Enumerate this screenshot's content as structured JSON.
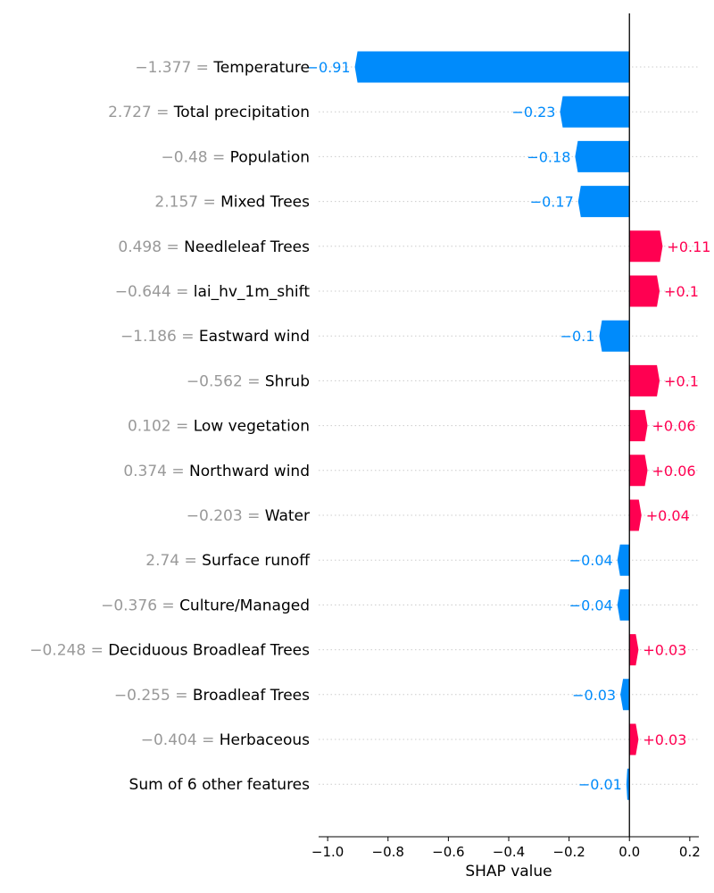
{
  "chart_data": {
    "type": "bar",
    "orientation": "horizontal",
    "xlabel": "SHAP value",
    "xlim": [
      -1.03,
      0.23
    ],
    "xticks": [
      -1.0,
      -0.8,
      -0.6,
      -0.4,
      -0.2,
      0.0,
      0.2
    ],
    "xtick_labels": [
      "−1.0",
      "−0.8",
      "−0.6",
      "−0.4",
      "−0.2",
      "0.0",
      "0.2"
    ],
    "colors": {
      "positive": "#ff0051",
      "negative": "#008bfb",
      "feature_value": "#999999"
    },
    "features": [
      {
        "value": "−1.377",
        "name": "Temperature",
        "shap": -0.91,
        "label": "−0.91"
      },
      {
        "value": "2.727",
        "name": "Total precipitation",
        "shap": -0.23,
        "label": "−0.23"
      },
      {
        "value": "−0.48",
        "name": "Population",
        "shap": -0.18,
        "label": "−0.18"
      },
      {
        "value": "2.157",
        "name": "Mixed Trees",
        "shap": -0.17,
        "label": "−0.17"
      },
      {
        "value": "0.498",
        "name": "Needleleaf Trees",
        "shap": 0.11,
        "label": "+0.11"
      },
      {
        "value": "−0.644",
        "name": "lai_hv_1m_shift",
        "shap": 0.1,
        "label": "+0.1"
      },
      {
        "value": "−1.186",
        "name": "Eastward wind",
        "shap": -0.1,
        "label": "−0.1"
      },
      {
        "value": "−0.562",
        "name": "Shrub",
        "shap": 0.1,
        "label": "+0.1"
      },
      {
        "value": "0.102",
        "name": "Low vegetation",
        "shap": 0.06,
        "label": "+0.06"
      },
      {
        "value": "0.374",
        "name": "Northward wind",
        "shap": 0.06,
        "label": "+0.06"
      },
      {
        "value": "−0.203",
        "name": "Water",
        "shap": 0.04,
        "label": "+0.04"
      },
      {
        "value": "2.74",
        "name": "Surface runoff",
        "shap": -0.04,
        "label": "−0.04"
      },
      {
        "value": "−0.376",
        "name": "Culture/Managed",
        "shap": -0.04,
        "label": "−0.04"
      },
      {
        "value": "−0.248",
        "name": "Deciduous Broadleaf Trees",
        "shap": 0.03,
        "label": "+0.03"
      },
      {
        "value": "−0.255",
        "name": "Broadleaf Trees",
        "shap": -0.03,
        "label": "−0.03"
      },
      {
        "value": "−0.404",
        "name": "Herbaceous",
        "shap": 0.03,
        "label": "+0.03"
      },
      {
        "value": "",
        "name": "Sum of 6 other features",
        "shap": -0.01,
        "label": "−0.01"
      }
    ]
  }
}
